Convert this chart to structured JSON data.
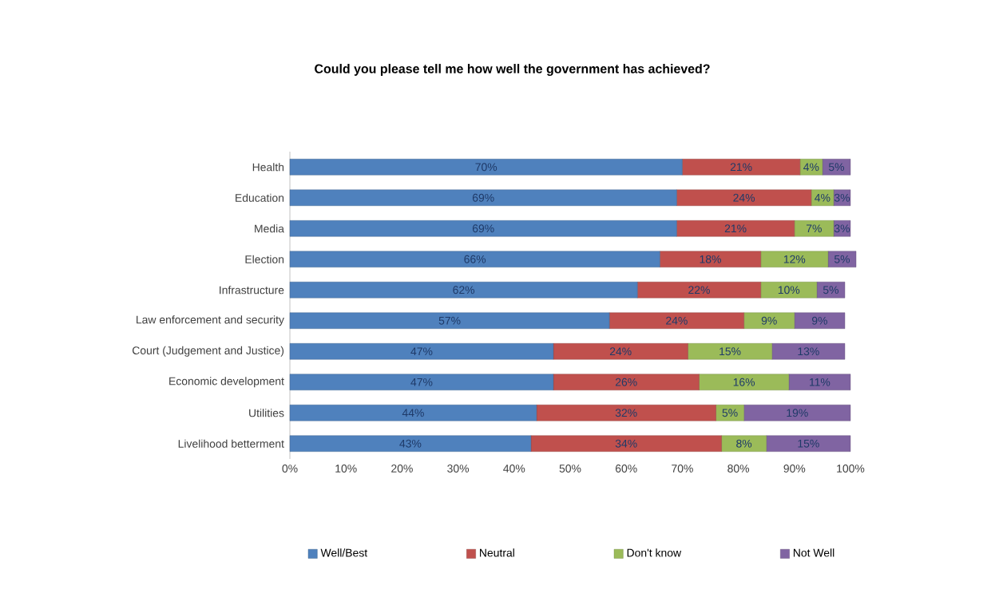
{
  "chart_data": {
    "type": "bar",
    "orientation": "horizontal",
    "stacked": true,
    "title": "Could you please tell me how well the government has achieved?",
    "categories": [
      "Health",
      "Education",
      "Media",
      "Election",
      "Infrastructure",
      "Law enforcement and security",
      "Court (Judgement and Justice)",
      "Economic development",
      "Utilities",
      "Livelihood betterment"
    ],
    "series": [
      {
        "name": "Well/Best",
        "color": "#4f81bd",
        "values": [
          70,
          69,
          69,
          66,
          62,
          57,
          47,
          47,
          44,
          43
        ],
        "value_labels": [
          "70%",
          "69%",
          "69%",
          "66%",
          "62%",
          "57%",
          "47%",
          "47%",
          "44%",
          "43%"
        ]
      },
      {
        "name": "Neutral",
        "color": "#c0504d",
        "values": [
          21,
          24,
          21,
          18,
          22,
          24,
          24,
          26,
          32,
          34
        ],
        "value_labels": [
          "21%",
          "24%",
          "21%",
          "18%",
          "22%",
          "24%",
          "24%",
          "26%",
          "32%",
          "34%"
        ]
      },
      {
        "name": "Don't know",
        "color": "#9bbb59",
        "values": [
          4,
          4,
          7,
          12,
          10,
          9,
          15,
          16,
          5,
          8
        ],
        "value_labels": [
          "4%",
          "4%",
          "7%",
          "12%",
          "10%",
          "9%",
          "15%",
          "16%",
          "5%",
          "8%"
        ]
      },
      {
        "name": "Not Well",
        "color": "#8064a2",
        "values": [
          5,
          3,
          3,
          5,
          5,
          9,
          13,
          11,
          19,
          15
        ],
        "value_labels": [
          "5%",
          "3%",
          "3%",
          "5%",
          "5%",
          "9%",
          "13%",
          "11%",
          "19%",
          "15%"
        ]
      }
    ],
    "xlim": [
      0,
      101
    ],
    "xticks": [
      {
        "value": 0,
        "label": "0%"
      },
      {
        "value": 10,
        "label": "10%"
      },
      {
        "value": 20,
        "label": "20%"
      },
      {
        "value": 30,
        "label": "30%"
      },
      {
        "value": 40,
        "label": "40%"
      },
      {
        "value": 50,
        "label": "50%"
      },
      {
        "value": 60,
        "label": "60%"
      },
      {
        "value": 70,
        "label": "70%"
      },
      {
        "value": 80,
        "label": "80%"
      },
      {
        "value": 90,
        "label": "90%"
      },
      {
        "value": 100,
        "label": "100%"
      }
    ],
    "legend": "bottom",
    "grid": false
  }
}
